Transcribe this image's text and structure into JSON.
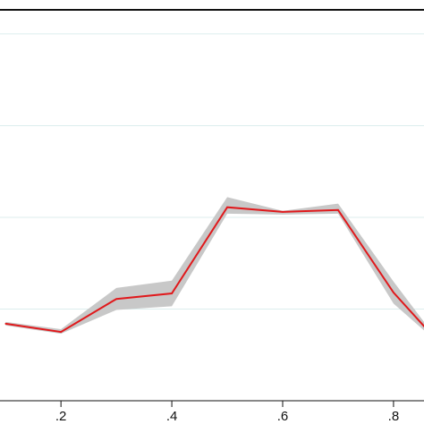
{
  "chart_data": {
    "type": "line",
    "title": "",
    "xlabel": "",
    "ylabel": "",
    "xlim": [
      0.09,
      0.855
    ],
    "ylim": [
      0,
      4.37
    ],
    "x_ticks": [
      0.2,
      0.4,
      0.6,
      0.8
    ],
    "x_tick_labels": [
      ".2",
      ".4",
      ".6",
      ".8"
    ],
    "y_gridlines": [
      1,
      2,
      3,
      4
    ],
    "grid": true,
    "legend": "none",
    "colors": {
      "line": "#e0191c",
      "confidence_band": "#c8c8c8",
      "grid": "#dceeee",
      "axis": "#111111"
    },
    "series": [
      {
        "x": [
          0.1,
          0.2,
          0.3,
          0.4,
          0.5,
          0.6,
          0.7,
          0.8,
          0.86
        ],
        "y": [
          0.84,
          0.75,
          1.11,
          1.17,
          2.11,
          2.06,
          2.08,
          1.18,
          0.78
        ],
        "y_lower": [
          0.82,
          0.73,
          0.99,
          1.03,
          2.04,
          2.03,
          2.04,
          1.06,
          0.74
        ],
        "y_upper": [
          0.86,
          0.78,
          1.23,
          1.31,
          2.22,
          2.07,
          2.15,
          1.3,
          0.82
        ]
      }
    ]
  }
}
